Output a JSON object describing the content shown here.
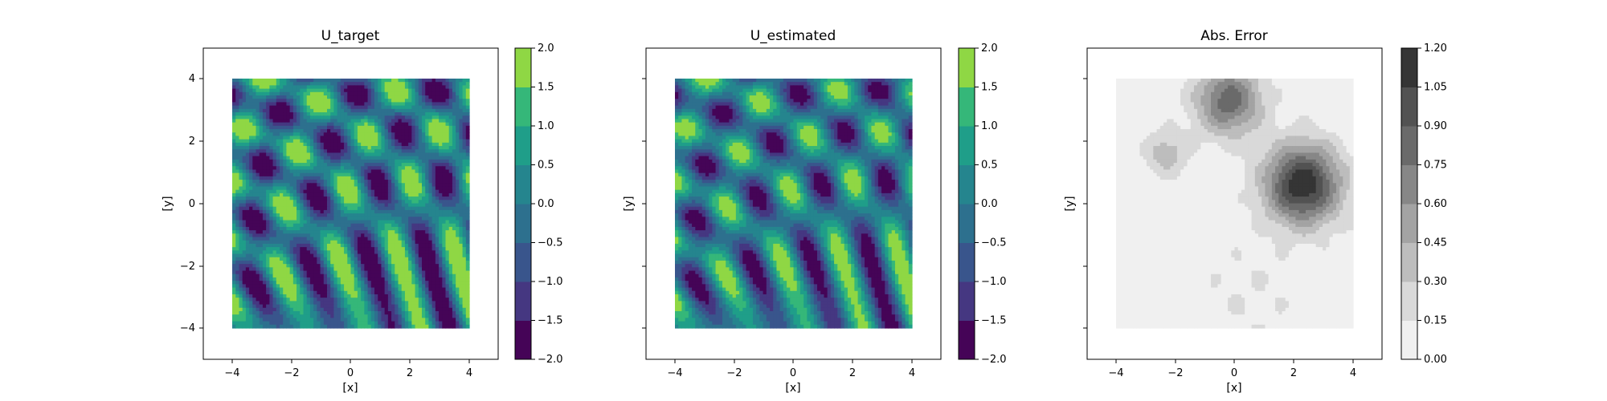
{
  "figure": {
    "panels": [
      {
        "title": "U_target",
        "xlabel": "[x]",
        "ylabel": "[y]",
        "colormap": "viridis",
        "colorbar_ticks": [
          "2.0",
          "1.5",
          "1.0",
          "0.5",
          "0.0",
          "−0.5",
          "−1.0",
          "−1.5",
          "−2.0"
        ]
      },
      {
        "title": "U_estimated",
        "xlabel": "[x]",
        "ylabel": "[y]",
        "colormap": "viridis",
        "colorbar_ticks": [
          "2.0",
          "1.5",
          "1.0",
          "0.5",
          "0.0",
          "−0.5",
          "−1.0",
          "−1.5",
          "−2.0"
        ]
      },
      {
        "title": "Abs. Error",
        "xlabel": "[x]",
        "ylabel": "[y]",
        "colormap": "greys",
        "colorbar_ticks": [
          "1.20",
          "1.05",
          "0.90",
          "0.75",
          "0.60",
          "0.45",
          "0.30",
          "0.15",
          "0.00"
        ]
      }
    ],
    "xticks": [
      "−4",
      "−2",
      "0",
      "2",
      "4"
    ],
    "yticks": [
      "4",
      "2",
      "0",
      "−2",
      "−4"
    ]
  },
  "chart_data": [
    {
      "type": "heatmap",
      "title": "U_target",
      "xlabel": "[x]",
      "ylabel": "[y]",
      "xlim": [
        -5,
        5
      ],
      "ylim": [
        -5,
        5
      ],
      "data_extent": [
        -4,
        4,
        -4,
        4
      ],
      "color_levels": [
        -2.0,
        -1.5,
        -1.0,
        -0.5,
        0.0,
        0.5,
        1.0,
        1.5,
        2.0
      ],
      "colormap": "viridis"
    },
    {
      "type": "heatmap",
      "title": "U_estimated",
      "xlabel": "[x]",
      "ylabel": "[y]",
      "xlim": [
        -5,
        5
      ],
      "ylim": [
        -5,
        5
      ],
      "data_extent": [
        -4,
        4,
        -4,
        4
      ],
      "color_levels": [
        -2.0,
        -1.5,
        -1.0,
        -0.5,
        0.0,
        0.5,
        1.0,
        1.5,
        2.0
      ],
      "colormap": "viridis"
    },
    {
      "type": "heatmap",
      "title": "Abs. Error",
      "xlabel": "[x]",
      "ylabel": "[y]",
      "xlim": [
        -5,
        5
      ],
      "ylim": [
        -5,
        5
      ],
      "data_extent": [
        -4,
        4,
        -4,
        4
      ],
      "color_levels": [
        0.0,
        0.15,
        0.3,
        0.45,
        0.6,
        0.75,
        0.9,
        1.05,
        1.2
      ],
      "colormap": "greys"
    }
  ],
  "colors": {
    "viridis": [
      "#450457",
      "#453781",
      "#39558c",
      "#2d708e",
      "#25858e",
      "#1f9e89",
      "#35b779",
      "#8fd744",
      "#d5e21a"
    ],
    "greys": [
      "#f0f0f0",
      "#d9d9d9",
      "#bdbdbd",
      "#a3a3a3",
      "#878787",
      "#6a6a6a",
      "#525252",
      "#353535",
      "#141414"
    ]
  }
}
